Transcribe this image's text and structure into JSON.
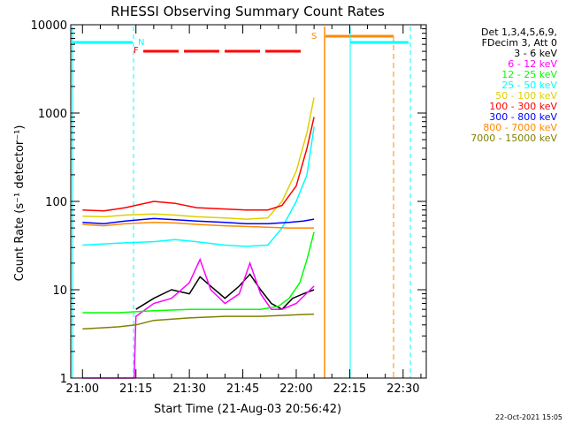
{
  "chart_data": {
    "type": "line",
    "title": "RHESSI Observing Summary Count Rates",
    "xlabel": "Start Time (21-Aug-03 20:56:42)",
    "ylabel": "Count Rate (s⁻¹ detector⁻¹)",
    "yscale": "log",
    "ylim": [
      1,
      10000
    ],
    "xlim_minutes_of_day": [
      1256.7,
      1356.5
    ],
    "x_ticks": [
      {
        "label": "21:00",
        "value": 1260
      },
      {
        "label": "21:15",
        "value": 1275
      },
      {
        "label": "21:30",
        "value": 1290
      },
      {
        "label": "21:45",
        "value": 1305
      },
      {
        "label": "22:00",
        "value": 1320
      },
      {
        "label": "22:15",
        "value": 1335
      },
      {
        "label": "22:30",
        "value": 1350
      }
    ],
    "y_ticks": [
      {
        "label": "1",
        "value": 1
      },
      {
        "label": "10",
        "value": 10
      },
      {
        "label": "100",
        "value": 100
      },
      {
        "label": "1000",
        "value": 1000
      },
      {
        "label": "10000",
        "value": 10000
      }
    ],
    "legend_header": [
      "Det 1,3,4,5,6,9,",
      "FDecim 3, Att 0"
    ],
    "legend_position": "right",
    "series": [
      {
        "name": "3 - 6 keV",
        "color": "#000000",
        "points": [
          [
            1275,
            6
          ],
          [
            1280,
            8
          ],
          [
            1285,
            10
          ],
          [
            1290,
            9
          ],
          [
            1293,
            14
          ],
          [
            1296,
            11
          ],
          [
            1300,
            8
          ],
          [
            1304,
            11
          ],
          [
            1307,
            15
          ],
          [
            1310,
            10
          ],
          [
            1313,
            7
          ],
          [
            1316,
            6
          ],
          [
            1319,
            8
          ],
          [
            1322,
            9
          ],
          [
            1325,
            10
          ]
        ]
      },
      {
        "name": "6 - 12 keV",
        "color": "#ff00ff",
        "points": [
          [
            1260,
            1
          ],
          [
            1274.5,
            1
          ],
          [
            1275,
            5
          ],
          [
            1280,
            7
          ],
          [
            1285,
            8
          ],
          [
            1290,
            12
          ],
          [
            1293,
            22
          ],
          [
            1296,
            10
          ],
          [
            1300,
            7
          ],
          [
            1304,
            9
          ],
          [
            1307,
            20
          ],
          [
            1310,
            9
          ],
          [
            1313,
            6
          ],
          [
            1316,
            6
          ],
          [
            1320,
            7
          ],
          [
            1325,
            11
          ]
        ]
      },
      {
        "name": "12 - 25 keV",
        "color": "#00ff00",
        "points": [
          [
            1260,
            5.5
          ],
          [
            1270,
            5.5
          ],
          [
            1280,
            5.8
          ],
          [
            1290,
            6
          ],
          [
            1300,
            6
          ],
          [
            1310,
            6
          ],
          [
            1315,
            6.5
          ],
          [
            1318,
            8
          ],
          [
            1321,
            12
          ],
          [
            1323,
            22
          ],
          [
            1325,
            45
          ]
        ]
      },
      {
        "name": "25 - 50 keV",
        "color": "#00ffff",
        "points": [
          [
            1260,
            32
          ],
          [
            1266,
            33
          ],
          [
            1272,
            34
          ],
          [
            1280,
            35
          ],
          [
            1286,
            37
          ],
          [
            1292,
            35
          ],
          [
            1300,
            32
          ],
          [
            1306,
            31
          ],
          [
            1312,
            32
          ],
          [
            1316,
            50
          ],
          [
            1320,
            100
          ],
          [
            1323,
            200
          ],
          [
            1325,
            700
          ]
        ]
      },
      {
        "name": "50 - 100 keV",
        "color": "#dfcf00",
        "points": [
          [
            1260,
            68
          ],
          [
            1266,
            67
          ],
          [
            1272,
            70
          ],
          [
            1280,
            72
          ],
          [
            1286,
            70
          ],
          [
            1292,
            67
          ],
          [
            1300,
            65
          ],
          [
            1306,
            63
          ],
          [
            1312,
            65
          ],
          [
            1316,
            100
          ],
          [
            1320,
            220
          ],
          [
            1323,
            600
          ],
          [
            1325,
            1500
          ]
        ]
      },
      {
        "name": "100 - 300 keV",
        "color": "#ff0000",
        "points": [
          [
            1260,
            80
          ],
          [
            1266,
            78
          ],
          [
            1272,
            85
          ],
          [
            1280,
            100
          ],
          [
            1286,
            95
          ],
          [
            1292,
            85
          ],
          [
            1300,
            82
          ],
          [
            1306,
            80
          ],
          [
            1312,
            80
          ],
          [
            1316,
            90
          ],
          [
            1320,
            150
          ],
          [
            1323,
            400
          ],
          [
            1325,
            900
          ]
        ]
      },
      {
        "name": "300 - 800 keV",
        "color": "#0000ff",
        "points": [
          [
            1260,
            58
          ],
          [
            1266,
            56
          ],
          [
            1272,
            60
          ],
          [
            1280,
            64
          ],
          [
            1286,
            62
          ],
          [
            1292,
            60
          ],
          [
            1300,
            58
          ],
          [
            1306,
            56
          ],
          [
            1312,
            56
          ],
          [
            1318,
            58
          ],
          [
            1322,
            60
          ],
          [
            1325,
            63
          ]
        ]
      },
      {
        "name": "800 - 7000 keV",
        "color": "#ff8800",
        "points": [
          [
            1260,
            55
          ],
          [
            1266,
            53
          ],
          [
            1272,
            56
          ],
          [
            1280,
            58
          ],
          [
            1286,
            57
          ],
          [
            1292,
            55
          ],
          [
            1300,
            53
          ],
          [
            1306,
            52
          ],
          [
            1312,
            51
          ],
          [
            1318,
            50
          ],
          [
            1322,
            50
          ],
          [
            1325,
            50
          ]
        ]
      },
      {
        "name": "7000 - 15000 keV",
        "color": "#808000",
        "points": [
          [
            1260,
            3.6
          ],
          [
            1270,
            3.8
          ],
          [
            1275,
            4
          ],
          [
            1280,
            4.5
          ],
          [
            1290,
            4.8
          ],
          [
            1300,
            5
          ],
          [
            1310,
            5
          ],
          [
            1320,
            5.2
          ],
          [
            1325,
            5.3
          ]
        ]
      }
    ],
    "flags": [
      {
        "letter": "N",
        "color": "#00ffff"
      },
      {
        "letter": "F",
        "color": "#ff0000"
      },
      {
        "letter": "S",
        "color": "#ff8800"
      }
    ],
    "footer_date": "22-Oct-2021 15:05"
  }
}
